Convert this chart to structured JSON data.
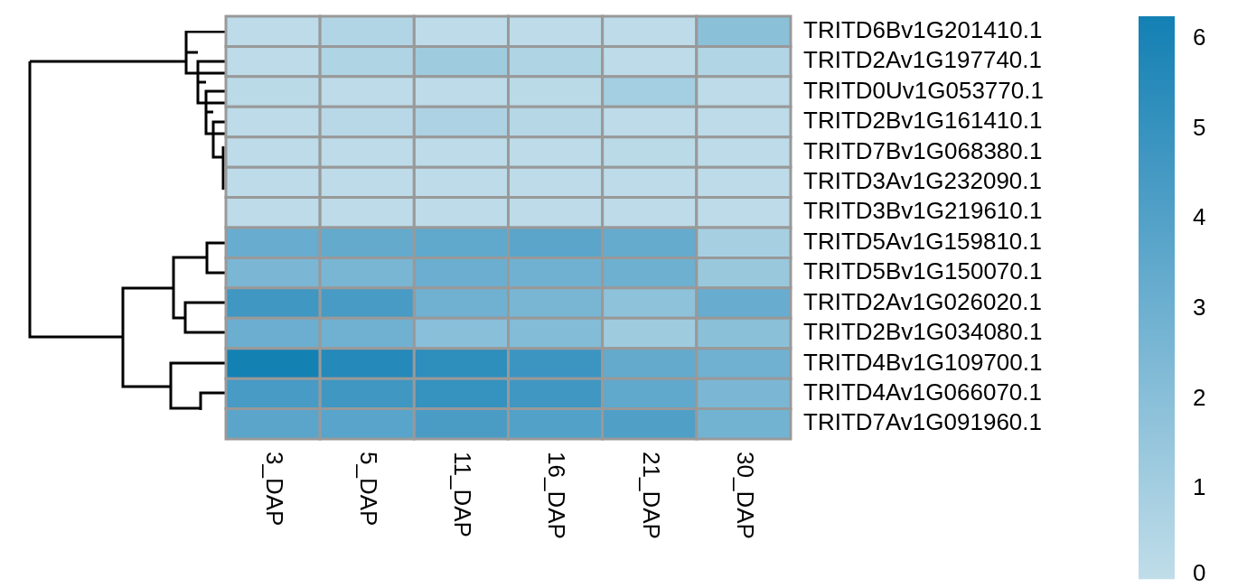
{
  "chart_data": {
    "type": "heatmap",
    "categories": [
      "3_DAP",
      "5_DAP",
      "11_DAP",
      "16_DAP",
      "21_DAP",
      "30_DAP"
    ],
    "y_categories": [
      "TRITD6Bv1G201410.1",
      "TRITD2Av1G197740.1",
      "TRITD0Uv1G053770.1",
      "TRITD2Bv1G161410.1",
      "TRITD7Bv1G068380.1",
      "TRITD3Av1G232090.1",
      "TRITD3Bv1G219610.1",
      "TRITD5Av1G159810.1",
      "TRITD5Bv1G150070.1",
      "TRITD2Av1G026020.1",
      "TRITD2Bv1G034080.1",
      "TRITD4Bv1G109700.1",
      "TRITD4Av1G066070.1",
      "TRITD7Av1G091960.1"
    ],
    "cells": [
      [
        0.1,
        0.5,
        0.1,
        0.1,
        0.1,
        1.9
      ],
      [
        0.1,
        0.6,
        1.2,
        0.6,
        0.1,
        0.5
      ],
      [
        0.2,
        0.1,
        0.1,
        0.2,
        1.0,
        0.1
      ],
      [
        0.1,
        0.3,
        0.7,
        0.4,
        0.1,
        0.1
      ],
      [
        0.1,
        0.1,
        0.1,
        0.1,
        0.2,
        0.1
      ],
      [
        0.1,
        0.1,
        0.1,
        0.1,
        0.1,
        0.1
      ],
      [
        0.1,
        0.1,
        0.1,
        0.1,
        0.1,
        0.1
      ],
      [
        3.2,
        3.4,
        3.5,
        3.7,
        3.3,
        0.9
      ],
      [
        2.5,
        2.6,
        3.1,
        2.9,
        3.0,
        1.4
      ],
      [
        4.7,
        4.4,
        2.9,
        2.6,
        1.8,
        3.2
      ],
      [
        3.1,
        2.9,
        2.0,
        2.2,
        1.2,
        1.9
      ],
      [
        6.2,
        5.6,
        5.3,
        4.8,
        3.4,
        2.9
      ],
      [
        4.4,
        4.7,
        5.0,
        4.7,
        3.5,
        2.5
      ],
      [
        3.7,
        3.8,
        4.3,
        4.0,
        4.1,
        2.8
      ]
    ],
    "clim": [
      0,
      6.25
    ],
    "cticks": [
      0,
      1,
      2,
      3,
      4,
      5,
      6
    ]
  }
}
